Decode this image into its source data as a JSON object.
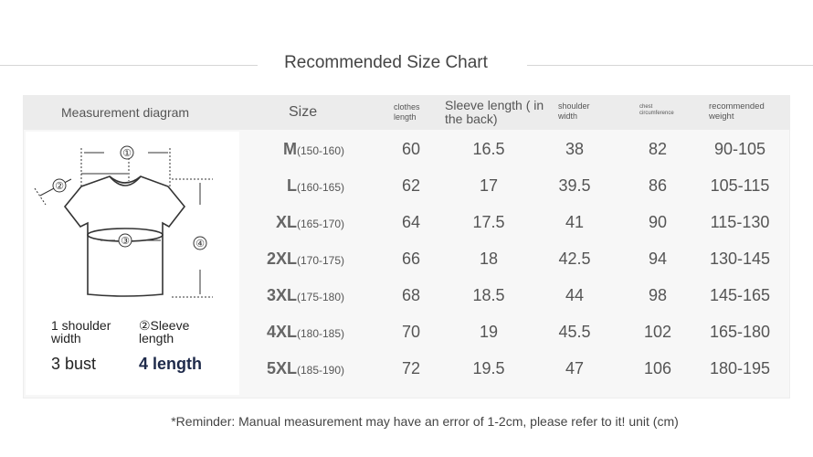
{
  "title": "Recommended Size Chart",
  "headers": {
    "diagram": "Measurement diagram",
    "size": "Size",
    "clothes_length": "clothes length",
    "sleeve_length": "Sleeve length ( in the back)",
    "shoulder_width": "shoulder width",
    "chest": "chest circumference",
    "weight": "recommended weight"
  },
  "legend": {
    "l1": "1 shoulder width",
    "l2": "②Sleeve length",
    "l3": "3 bust",
    "l4": "4 length"
  },
  "diagram_markers": [
    "①",
    "②",
    "③",
    "④"
  ],
  "rows": [
    {
      "size": "M",
      "height": "(150-160)",
      "clothes": "60",
      "sleeve": "16.5",
      "shoulder": "38",
      "chest": "82",
      "weight": "90-105"
    },
    {
      "size": "L",
      "height": "(160-165)",
      "clothes": "62",
      "sleeve": "17",
      "shoulder": "39.5",
      "chest": "86",
      "weight": "105-115"
    },
    {
      "size": "XL",
      "height": "(165-170)",
      "clothes": "64",
      "sleeve": "17.5",
      "shoulder": "41",
      "chest": "90",
      "weight": "115-130"
    },
    {
      "size": "2XL",
      "height": "(170-175)",
      "clothes": "66",
      "sleeve": "18",
      "shoulder": "42.5",
      "chest": "94",
      "weight": "130-145"
    },
    {
      "size": "3XL",
      "height": "(175-180)",
      "clothes": "68",
      "sleeve": "18.5",
      "shoulder": "44",
      "chest": "98",
      "weight": "145-165"
    },
    {
      "size": "4XL",
      "height": "(180-185)",
      "clothes": "70",
      "sleeve": "19",
      "shoulder": "45.5",
      "chest": "102",
      "weight": "165-180"
    },
    {
      "size": "5XL",
      "height": "(185-190)",
      "clothes": "72",
      "sleeve": "19.5",
      "shoulder": "47",
      "chest": "106",
      "weight": "180-195"
    }
  ],
  "reminder": "*Reminder: Manual measurement may have an error of 1-2cm, please refer to it! unit (cm)"
}
